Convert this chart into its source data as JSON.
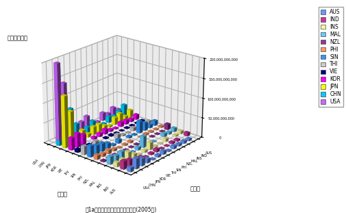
{
  "title": "図1a。輸出側報告による総賿易額(2005年)",
  "ylabel_text": "費易額（＄）",
  "xlabel_text": "輸入国",
  "ylabel2_text": "輸出国",
  "countries": [
    "USA",
    "CHN",
    "JPN",
    "KOR",
    "VIE",
    "THI",
    "SIN",
    "PHI",
    "NZL",
    "MAL",
    "INS",
    "IND",
    "AUS"
  ],
  "exporters": [
    "USA",
    "CHN",
    "JPN",
    "KOR",
    "VIE",
    "THI",
    "SIN",
    "PHI",
    "NZL",
    "MAL",
    "INS",
    "IND",
    "AUS"
  ],
  "importers": [
    "USA",
    "CHN",
    "JPN",
    "KOR",
    "VIE",
    "THI",
    "SIN",
    "PHI",
    "NZL",
    "MAL",
    "INS",
    "IND",
    "AUS"
  ],
  "legend_countries": [
    "AUS",
    "IND",
    "INS",
    "MAL",
    "NZL",
    "PHI",
    "SIN",
    "THI",
    "VIE",
    "KOR",
    "JPN",
    "CHN",
    "USA"
  ],
  "colors": {
    "AUS": "#6699FF",
    "IND": "#CC3399",
    "INS": "#FFFF99",
    "MAL": "#66CCFF",
    "NZL": "#993399",
    "PHI": "#FF9966",
    "SIN": "#3399FF",
    "THI": "#CCCCCC",
    "VIE": "#000080",
    "KOR": "#FF00FF",
    "JPN": "#FFFF00",
    "CHN": "#00CCFF",
    "USA": "#CC66FF"
  },
  "trade_data": {
    "AUS": {
      "AUS": 0,
      "IND": 8000000000,
      "INS": 7000000000,
      "MAL": 9000000000,
      "NZL": 14000000000,
      "PHI": 3000000000,
      "SIN": 12000000000,
      "THI": 6000000000,
      "VIE": 1500000000,
      "KOR": 12000000000,
      "JPN": 19000000000,
      "CHN": 28000000000,
      "USA": 11000000000
    },
    "IND": {
      "AUS": 5000000000,
      "IND": 0,
      "INS": 3000000000,
      "MAL": 5000000000,
      "NZL": 1000000000,
      "PHI": 1500000000,
      "SIN": 8000000000,
      "THI": 4000000000,
      "VIE": 1000000000,
      "KOR": 7000000000,
      "JPN": 9000000000,
      "CHN": 18000000000,
      "USA": 22000000000
    },
    "INS": {
      "AUS": 6000000000,
      "IND": 4000000000,
      "INS": 0,
      "MAL": 8000000000,
      "NZL": 800000000,
      "PHI": 2000000000,
      "SIN": 20000000000,
      "THI": 5000000000,
      "VIE": 1200000000,
      "KOR": 10000000000,
      "JPN": 23000000000,
      "CHN": 11000000000,
      "USA": 12000000000
    },
    "MAL": {
      "AUS": 5500000000,
      "IND": 4000000000,
      "INS": 7000000000,
      "MAL": 0,
      "NZL": 900000000,
      "PHI": 3000000000,
      "SIN": 30000000000,
      "THI": 8000000000,
      "VIE": 1500000000,
      "KOR": 11000000000,
      "JPN": 18000000000,
      "CHN": 15000000000,
      "USA": 20000000000
    },
    "NZL": {
      "AUS": 7000000000,
      "IND": 800000000,
      "INS": 700000000,
      "MAL": 900000000,
      "NZL": 0,
      "PHI": 500000000,
      "SIN": 1500000000,
      "THI": 800000000,
      "VIE": 300000000,
      "KOR": 2000000000,
      "JPN": 3500000000,
      "CHN": 3000000000,
      "USA": 3000000000
    },
    "PHI": {
      "AUS": 2000000000,
      "IND": 1000000000,
      "INS": 1500000000,
      "MAL": 2500000000,
      "NZL": 400000000,
      "PHI": 0,
      "SIN": 4000000000,
      "THI": 3000000000,
      "VIE": 800000000,
      "KOR": 5000000000,
      "JPN": 10000000000,
      "CHN": 7000000000,
      "USA": 11000000000
    },
    "SIN": {
      "AUS": 8000000000,
      "IND": 7000000000,
      "INS": 18000000000,
      "MAL": 28000000000,
      "NZL": 1200000000,
      "PHI": 4000000000,
      "SIN": 0,
      "THI": 10000000000,
      "VIE": 3000000000,
      "KOR": 12000000000,
      "JPN": 20000000000,
      "CHN": 22000000000,
      "USA": 30000000000
    },
    "THI": {
      "AUS": 5000000000,
      "IND": 3500000000,
      "INS": 5000000000,
      "MAL": 7000000000,
      "NZL": 700000000,
      "PHI": 2500000000,
      "SIN": 9000000000,
      "THI": 0,
      "VIE": 2000000000,
      "KOR": 8000000000,
      "JPN": 20000000000,
      "CHN": 13000000000,
      "USA": 22000000000
    },
    "VIE": {
      "AUS": 1500000000,
      "IND": 900000000,
      "INS": 1200000000,
      "MAL": 2000000000,
      "NZL": 200000000,
      "PHI": 800000000,
      "SIN": 3000000000,
      "THI": 2000000000,
      "VIE": 0,
      "KOR": 5000000000,
      "JPN": 8000000000,
      "CHN": 9000000000,
      "USA": 7000000000
    },
    "KOR": {
      "AUS": 10000000000,
      "IND": 8000000000,
      "INS": 10000000000,
      "MAL": 10000000000,
      "NZL": 1500000000,
      "PHI": 5000000000,
      "SIN": 13000000000,
      "THI": 9000000000,
      "VIE": 3500000000,
      "KOR": 0,
      "JPN": 24000000000,
      "CHN": 35000000000,
      "USA": 33000000000
    },
    "JPN": {
      "AUS": 18000000000,
      "IND": 8000000000,
      "INS": 22000000000,
      "MAL": 17000000000,
      "NZL": 3000000000,
      "PHI": 9000000000,
      "SIN": 20000000000,
      "THI": 20000000000,
      "VIE": 5000000000,
      "KOR": 25000000000,
      "JPN": 0,
      "CHN": 80000000000,
      "USA": 140000000000
    },
    "CHN": {
      "AUS": 25000000000,
      "IND": 16000000000,
      "INS": 11000000000,
      "MAL": 14000000000,
      "NZL": 2500000000,
      "PHI": 7000000000,
      "SIN": 22000000000,
      "THI": 13000000000,
      "VIE": 9000000000,
      "KOR": 35000000000,
      "JPN": 85000000000,
      "CHN": 0,
      "USA": 195000000000
    },
    "USA": {
      "AUS": 10000000000,
      "IND": 20000000000,
      "INS": 10000000000,
      "MAL": 19000000000,
      "NZL": 2500000000,
      "PHI": 10000000000,
      "SIN": 28000000000,
      "THI": 21000000000,
      "VIE": 7000000000,
      "KOR": 30000000000,
      "JPN": 130000000000,
      "CHN": 45000000000,
      "USA": 0
    }
  },
  "background_color": "#FFFFFF",
  "panel_color": "#DCDCDC",
  "zlim": [
    0,
    200000000000
  ],
  "zticks": [
    0,
    50000000000,
    100000000000,
    150000000000,
    200000000000
  ],
  "elev": 22,
  "azim": -50
}
